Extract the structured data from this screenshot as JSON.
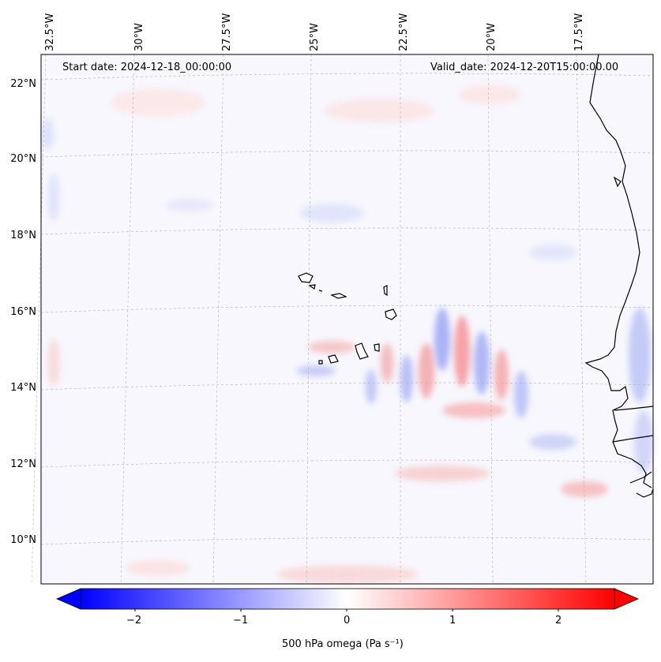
{
  "map": {
    "start_label": "Start date: 2024-12-18_00:00:00",
    "valid_label": "Valid_date: 2024-12-20T15:00:00.00",
    "lon_labels": [
      "32.5°W",
      "30°W",
      "27.5°W",
      "25°W",
      "22.5°W",
      "20°W",
      "17.5°W"
    ],
    "lat_labels": [
      "22°N",
      "20°N",
      "18°N",
      "16°N",
      "14°N",
      "12°N",
      "10°N"
    ],
    "extent": {
      "lon": [
        -33.0,
        -15.8
      ],
      "lat": [
        8.9,
        22.8
      ]
    },
    "projection": "lambert-conformal",
    "coastline_color": "#000000",
    "gridline_color": "#b0b0b0"
  },
  "colorbar": {
    "label": "500 hPa omega (Pa s⁻¹)",
    "ticks": [
      "−2",
      "−1",
      "0",
      "1",
      "2"
    ],
    "range": [
      -2.6,
      2.6
    ],
    "colormap": "bwr",
    "colors": {
      "low": "#0000ff",
      "mid": "#ffffff",
      "high": "#ff0000"
    },
    "extend": "both"
  }
}
